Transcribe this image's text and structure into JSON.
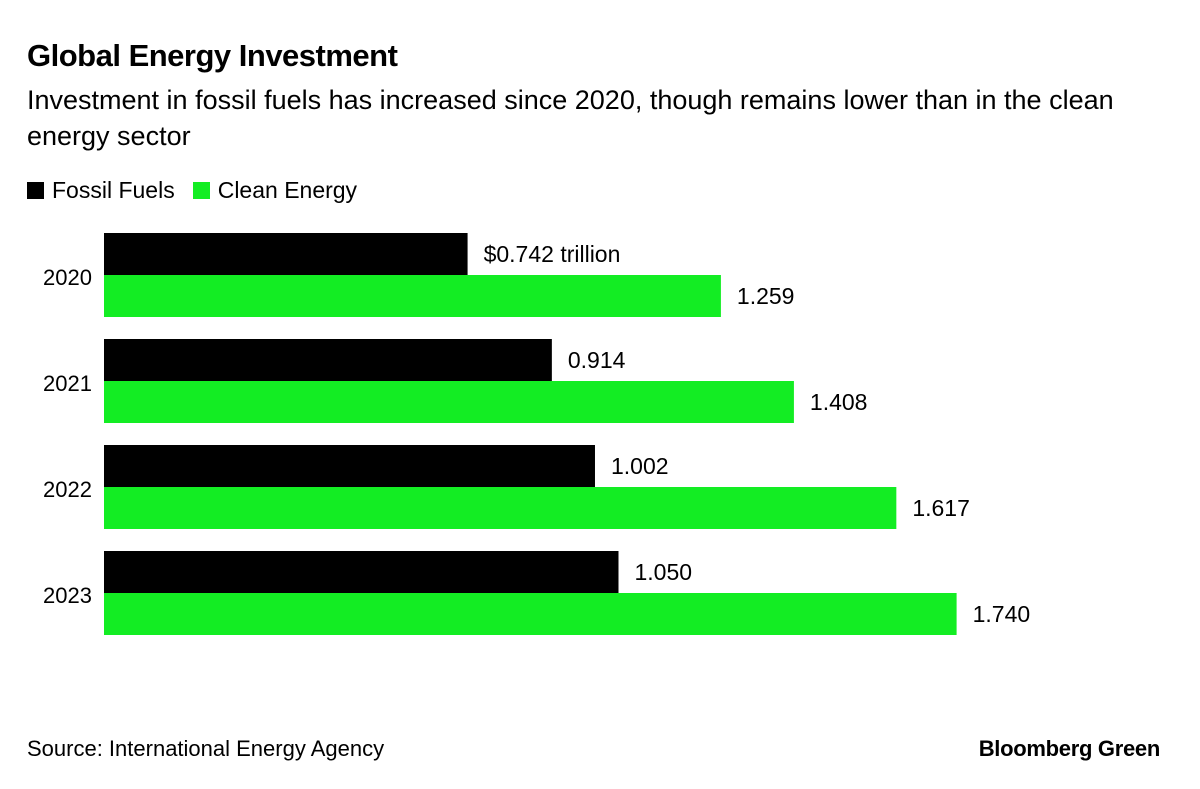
{
  "header": {
    "title": "Global Energy Investment",
    "subtitle": "Investment in fossil fuels has increased since 2020, though remains lower than in the clean energy sector"
  },
  "footer": {
    "source": "Source: International Energy Agency",
    "brand": "Bloomberg Green"
  },
  "chart_data": {
    "type": "bar",
    "orientation": "horizontal",
    "title": "Global Energy Investment",
    "subtitle": "Investment in fossil fuels has increased since 2020, though remains lower than in the clean energy sector",
    "xlabel": "",
    "ylabel": "",
    "unit": "trillion USD",
    "xlim": [
      0,
      2
    ],
    "grid": false,
    "legend_position": "top-left",
    "categories": [
      "2020",
      "2021",
      "2022",
      "2023"
    ],
    "series": [
      {
        "name": "Fossil Fuels",
        "color": "#000000",
        "values": [
          0.742,
          0.914,
          1.002,
          1.05
        ],
        "labels": [
          "$0.742 trillion",
          "0.914",
          "1.002",
          "1.050"
        ]
      },
      {
        "name": "Clean Energy",
        "color": "#13ed23",
        "values": [
          1.259,
          1.408,
          1.617,
          1.74
        ],
        "labels": [
          "1.259",
          "1.408",
          "1.617",
          "1.740"
        ]
      }
    ]
  }
}
